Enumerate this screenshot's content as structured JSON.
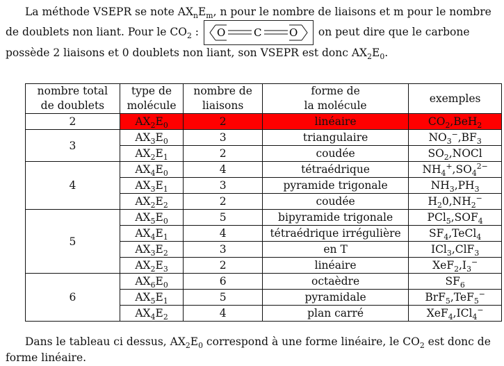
{
  "intro": {
    "s1": "La méthode VSEPR se note AX",
    "s1_sub_n": "n",
    "s1_mid": "E",
    "s1_sub_m": "m",
    "s2": ", n pour le nombre de liaisons et m pour le nombre de doublets non liant. Pour le CO",
    "s2_sub": "2",
    "s3": " : ",
    "lewis_O_left": "O",
    "lewis_C": "C",
    "lewis_O_right": "O",
    "s4": " on peut dire que le carbone possède 2 liaisons et 0 doublets non liant, son VSEPR est donc AX",
    "s4_sub1": "2",
    "s4_E": "E",
    "s4_sub2": "0",
    "s4_end": "."
  },
  "table": {
    "headers": {
      "col1_l1": "nombre total",
      "col1_l2": "de doublets",
      "col2_l1": "type de",
      "col2_l2": "molécule",
      "col3_l1": "nombre de",
      "col3_l2": "liaisons",
      "col4_l1": "forme de",
      "col4_l2": "la molécule",
      "col5": "exemples"
    },
    "highlight_color": "#ff0000",
    "groups": [
      {
        "total": "2",
        "rows": [
          {
            "x": "2",
            "e": "0",
            "liaisons": "2",
            "forme": "linéaire",
            "highlight": true,
            "ex": [
              {
                "t": "CO"
              },
              {
                "t": "2",
                "sub": true
              },
              {
                "t": ",BeH"
              },
              {
                "t": "2",
                "sub": true
              }
            ]
          }
        ]
      },
      {
        "total": "3",
        "rows": [
          {
            "x": "3",
            "e": "0",
            "liaisons": "3",
            "forme": "triangulaire",
            "ex": [
              {
                "t": "NO"
              },
              {
                "t": "3",
                "sub": true
              },
              {
                "t": "−",
                "sup": true
              },
              {
                "t": ",BF"
              },
              {
                "t": "3",
                "sub": true
              }
            ]
          },
          {
            "x": "2",
            "e": "1",
            "liaisons": "2",
            "forme": "coudée",
            "ex": [
              {
                "t": "SO"
              },
              {
                "t": "2",
                "sub": true
              },
              {
                "t": ",NOCl"
              }
            ]
          }
        ]
      },
      {
        "total": "4",
        "rows": [
          {
            "x": "4",
            "e": "0",
            "liaisons": "4",
            "forme": "tétraédrique",
            "ex": [
              {
                "t": "NH"
              },
              {
                "t": "4",
                "sub": true
              },
              {
                "t": "+",
                "sup": true
              },
              {
                "t": ",SO"
              },
              {
                "t": "4",
                "sub": true
              },
              {
                "t": "2−",
                "sup": true
              }
            ]
          },
          {
            "x": "3",
            "e": "1",
            "liaisons": "3",
            "forme": "pyramide trigonale",
            "ex": [
              {
                "t": "NH"
              },
              {
                "t": "3",
                "sub": true
              },
              {
                "t": ",PH"
              },
              {
                "t": "3",
                "sub": true
              }
            ]
          },
          {
            "x": "2",
            "e": "2",
            "liaisons": "2",
            "forme": "coudée",
            "ex": [
              {
                "t": "H"
              },
              {
                "t": "2",
                "sub": true
              },
              {
                "t": "0,NH"
              },
              {
                "t": "2",
                "sub": true
              },
              {
                "t": "−",
                "sup": true
              }
            ]
          }
        ]
      },
      {
        "total": "5",
        "rows": [
          {
            "x": "5",
            "e": "0",
            "liaisons": "5",
            "forme": "bipyramide trigonale",
            "ex": [
              {
                "t": "PCl"
              },
              {
                "t": "5",
                "sub": true
              },
              {
                "t": ",SOF"
              },
              {
                "t": "4",
                "sub": true
              }
            ]
          },
          {
            "x": "4",
            "e": "1",
            "liaisons": "4",
            "forme": "tétraédrique irrégulière",
            "ex": [
              {
                "t": "SF"
              },
              {
                "t": "4",
                "sub": true
              },
              {
                "t": ",TeCl"
              },
              {
                "t": "4",
                "sub": true
              }
            ]
          },
          {
            "x": "3",
            "e": "2",
            "liaisons": "3",
            "forme": "en T",
            "ex": [
              {
                "t": "ICl"
              },
              {
                "t": "3",
                "sub": true
              },
              {
                "t": ",ClF"
              },
              {
                "t": "3",
                "sub": true
              }
            ]
          },
          {
            "x": "2",
            "e": "3",
            "liaisons": "2",
            "forme": "linéaire",
            "ex": [
              {
                "t": "XeF"
              },
              {
                "t": "2",
                "sub": true
              },
              {
                "t": ",I"
              },
              {
                "t": "3",
                "sub": true
              },
              {
                "t": "−",
                "sup": true
              }
            ]
          }
        ]
      },
      {
        "total": "6",
        "rows": [
          {
            "x": "6",
            "e": "0",
            "liaisons": "6",
            "forme": "octaèdre",
            "ex": [
              {
                "t": "SF"
              },
              {
                "t": "6",
                "sub": true
              }
            ]
          },
          {
            "x": "5",
            "e": "1",
            "liaisons": "5",
            "forme": "pyramidale",
            "ex": [
              {
                "t": "BrF"
              },
              {
                "t": "5",
                "sub": true
              },
              {
                "t": ",TeF"
              },
              {
                "t": "5",
                "sub": true
              },
              {
                "t": "−",
                "sup": true
              }
            ]
          },
          {
            "x": "4",
            "e": "2",
            "liaisons": "4",
            "forme": "plan carré",
            "ex": [
              {
                "t": "XeF"
              },
              {
                "t": "4",
                "sub": true
              },
              {
                "t": ",ICl"
              },
              {
                "t": "4",
                "sub": true
              },
              {
                "t": "−",
                "sup": true
              }
            ]
          }
        ]
      }
    ]
  },
  "outro": {
    "s1": "Dans le tableau ci dessus, AX",
    "s1_sub1": "2",
    "s1_E": "E",
    "s1_sub2": "0",
    "s2": " correspond à une forme linéaire, le CO",
    "s2_sub": "2",
    "s3": " est donc de forme linéaire."
  }
}
